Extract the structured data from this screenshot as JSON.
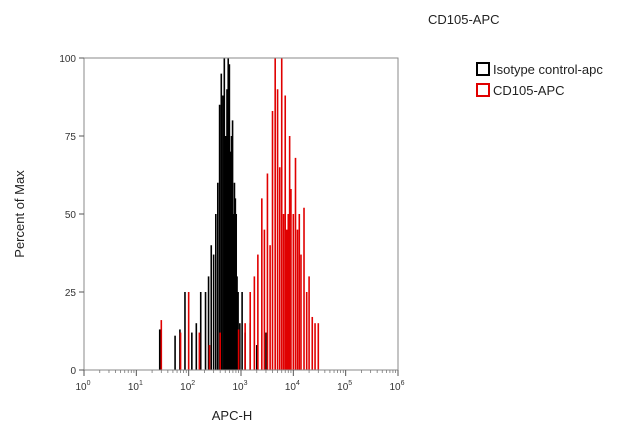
{
  "chart_data": {
    "type": "histogram",
    "title": "CD105-APC",
    "xlabel": "APC-H",
    "ylabel": "Percent of Max",
    "x_scale": "log",
    "xlim": [
      1,
      1000000
    ],
    "ylim": [
      0,
      100
    ],
    "y_ticks": [
      "0",
      "25",
      "50",
      "75",
      "100"
    ],
    "x_ticks": [
      {
        "base": "10",
        "exp": "0"
      },
      {
        "base": "10",
        "exp": "1"
      },
      {
        "base": "10",
        "exp": "2"
      },
      {
        "base": "10",
        "exp": "3"
      },
      {
        "base": "10",
        "exp": "4"
      },
      {
        "base": "10",
        "exp": "5"
      },
      {
        "base": "10",
        "exp": "6"
      }
    ],
    "grid": false,
    "legend_position": "top-right",
    "series": [
      {
        "name": "Isotype control-apc",
        "color": "#000000",
        "x": [
          28,
          55,
          68,
          85,
          115,
          140,
          170,
          210,
          240,
          270,
          300,
          330,
          360,
          390,
          420,
          450,
          480,
          510,
          540,
          570,
          600,
          630,
          660,
          690,
          720,
          750,
          780,
          810,
          840,
          880,
          950,
          1050,
          1200,
          1500,
          2000,
          3000
        ],
        "y": [
          13,
          11,
          13,
          25,
          12,
          15,
          25,
          25,
          30,
          40,
          37,
          50,
          60,
          85,
          95,
          88,
          100,
          75,
          90,
          100,
          98,
          70,
          75,
          80,
          50,
          60,
          55,
          50,
          30,
          25,
          15,
          25,
          12,
          15,
          8,
          12
        ]
      },
      {
        "name": "CD105-APC",
        "color": "#e00000",
        "x": [
          30,
          70,
          100,
          160,
          250,
          400,
          900,
          1200,
          1500,
          1800,
          2100,
          2500,
          2800,
          3200,
          3600,
          4000,
          4500,
          5000,
          5500,
          6000,
          6500,
          7000,
          7500,
          8000,
          8500,
          9000,
          10000,
          11000,
          12000,
          13000,
          14000,
          16000,
          18000,
          20000,
          23000,
          26000,
          30000
        ],
        "y": [
          16,
          12,
          25,
          12,
          8,
          12,
          13,
          15,
          25,
          30,
          37,
          55,
          45,
          63,
          40,
          83,
          100,
          90,
          65,
          100,
          50,
          88,
          45,
          50,
          75,
          58,
          50,
          68,
          45,
          50,
          37,
          52,
          25,
          30,
          17,
          15,
          15
        ]
      }
    ]
  }
}
